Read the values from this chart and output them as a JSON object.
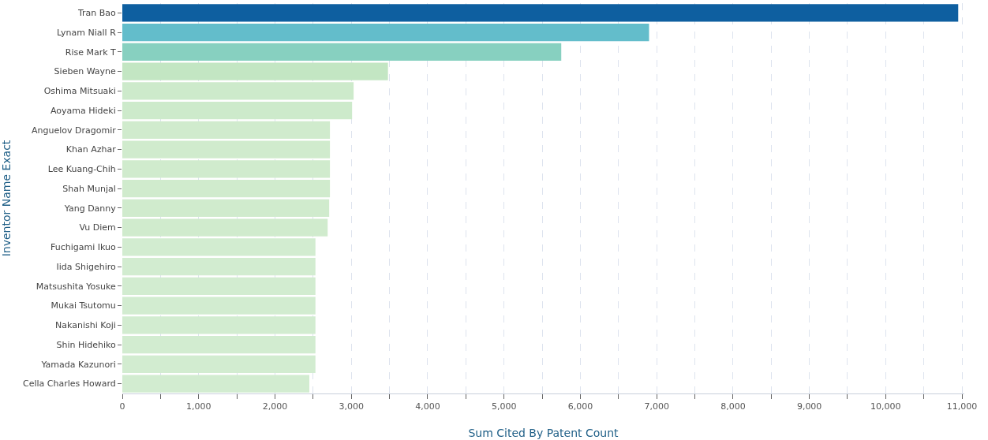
{
  "chart_data": {
    "type": "bar",
    "orientation": "horizontal",
    "xlabel": "Sum Cited By Patent Count",
    "ylabel": "Inventor Name Exact",
    "categories": [
      "Tran Bao",
      "Lynam Niall R",
      "Rise Mark T",
      "Sieben Wayne",
      "Oshima Mitsuaki",
      "Aoyama Hideki",
      "Anguelov Dragomir",
      "Khan Azhar",
      "Lee Kuang-Chih",
      "Shah Munjal",
      "Yang Danny",
      "Vu Diem",
      "Fuchigami Ikuo",
      "Iida Shigehiro",
      "Matsushita Yosuke",
      "Mukai Tsutomu",
      "Nakanishi Koji",
      "Shin Hidehiko",
      "Yamada Kazunori",
      "Cella Charles Howard"
    ],
    "values": [
      10950,
      6900,
      5750,
      3480,
      3030,
      3010,
      2720,
      2720,
      2720,
      2720,
      2710,
      2690,
      2530,
      2530,
      2530,
      2530,
      2530,
      2530,
      2530,
      2450
    ],
    "colors": [
      "#0e5fa0",
      "#63bdcb",
      "#87d0c0",
      "#c3e6c3",
      "#cdeacb",
      "#cdeacb",
      "#d0ebcd",
      "#d0ebcd",
      "#d0ebcd",
      "#d0ebcd",
      "#d0ebcd",
      "#d0ebcd",
      "#d2ecd0",
      "#d2ecd0",
      "#d2ecd0",
      "#d2ecd0",
      "#d2ecd0",
      "#d2ecd0",
      "#d2ecd0",
      "#d2ecd0"
    ],
    "xlim": [
      0,
      11030
    ],
    "xticks": [
      0,
      {
        "value": 500,
        "label": null
      },
      {
        "value": 1000,
        "label": "1,000"
      },
      {
        "value": 1500,
        "label": null
      },
      {
        "value": 2000,
        "label": "2,000"
      },
      {
        "value": 2500,
        "label": null
      },
      {
        "value": 3000,
        "label": "3,000"
      },
      {
        "value": 3500,
        "label": null
      },
      {
        "value": 4000,
        "label": "4,000"
      },
      {
        "value": 4500,
        "label": null
      },
      {
        "value": 5000,
        "label": "5,000"
      },
      {
        "value": 5500,
        "label": null
      },
      {
        "value": 6000,
        "label": "6,000"
      },
      {
        "value": 6500,
        "label": null
      },
      {
        "value": 7000,
        "label": "7,000"
      },
      {
        "value": 7500,
        "label": null
      },
      {
        "value": 8000,
        "label": "8,000"
      },
      {
        "value": 8500,
        "label": null
      },
      {
        "value": 9000,
        "label": "9,000"
      },
      {
        "value": 9500,
        "label": null
      },
      {
        "value": 10000,
        "label": "10,000"
      },
      {
        "value": 10500,
        "label": null
      },
      {
        "value": 11000,
        "label": "11,000"
      }
    ],
    "grid": "x"
  }
}
